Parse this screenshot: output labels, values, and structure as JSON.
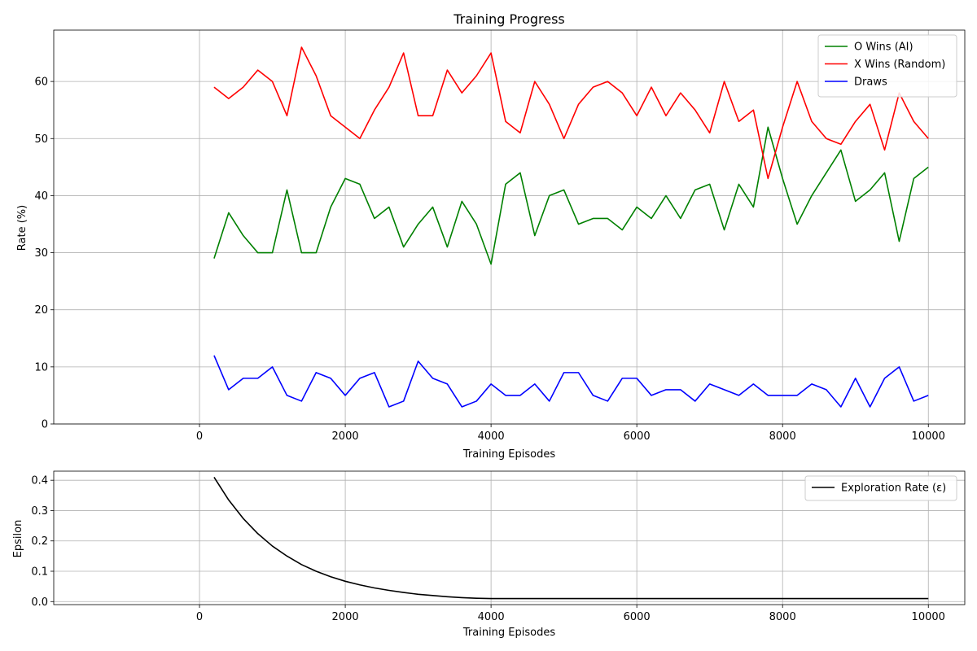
{
  "chart_data": [
    {
      "type": "line",
      "title": "Training Progress",
      "xlabel": "Training Episodes",
      "ylabel": "Rate (%)",
      "xlim": [
        -2000,
        10500
      ],
      "ylim": [
        0,
        69
      ],
      "xticks": [
        0,
        2000,
        4000,
        6000,
        8000,
        10000
      ],
      "xtick_labels": [
        "0",
        "2000",
        "4000",
        "6000",
        "8000",
        "10000"
      ],
      "yticks": [
        0,
        10,
        20,
        30,
        40,
        50,
        60
      ],
      "ytick_labels": [
        "0",
        "10",
        "20",
        "30",
        "40",
        "50",
        "60"
      ],
      "grid": true,
      "legend_position": "upper right",
      "x": [
        200,
        400,
        600,
        800,
        1000,
        1200,
        1400,
        1600,
        1800,
        2000,
        2200,
        2400,
        2600,
        2800,
        3000,
        3200,
        3400,
        3600,
        3800,
        4000,
        4200,
        4400,
        4600,
        4800,
        5000,
        5200,
        5400,
        5600,
        5800,
        6000,
        6200,
        6400,
        6600,
        6800,
        7000,
        7200,
        7400,
        7600,
        7800,
        8000,
        8200,
        8400,
        8600,
        8800,
        9000,
        9200,
        9400,
        9600,
        9800,
        10000
      ],
      "series": [
        {
          "name": "O Wins (AI)",
          "color": "#008000",
          "values": [
            29,
            37,
            33,
            30,
            30,
            41,
            30,
            30,
            38,
            43,
            42,
            36,
            38,
            31,
            35,
            38,
            31,
            39,
            35,
            28,
            42,
            44,
            33,
            40,
            41,
            35,
            36,
            36,
            34,
            38,
            36,
            40,
            36,
            41,
            42,
            34,
            42,
            38,
            52,
            43,
            35,
            40,
            44,
            48,
            39,
            41,
            44,
            32,
            43,
            45
          ]
        },
        {
          "name": "X Wins (Random)",
          "color": "#ff0000",
          "values": [
            59,
            57,
            59,
            62,
            60,
            54,
            66,
            61,
            54,
            52,
            50,
            55,
            59,
            65,
            54,
            54,
            62,
            58,
            61,
            65,
            53,
            51,
            60,
            56,
            50,
            56,
            59,
            60,
            58,
            54,
            59,
            54,
            58,
            55,
            51,
            60,
            53,
            55,
            43,
            52,
            60,
            53,
            50,
            49,
            53,
            56,
            48,
            58,
            53,
            50
          ]
        },
        {
          "name": "Draws",
          "color": "#0000ff",
          "values": [
            12,
            6,
            8,
            8,
            10,
            5,
            4,
            9,
            8,
            5,
            8,
            9,
            3,
            4,
            11,
            8,
            7,
            3,
            4,
            7,
            5,
            5,
            7,
            4,
            9,
            9,
            5,
            4,
            8,
            8,
            5,
            6,
            6,
            4,
            7,
            6,
            5,
            7,
            5,
            5,
            5,
            7,
            6,
            3,
            8,
            3,
            8,
            10,
            4,
            5
          ]
        }
      ]
    },
    {
      "type": "line",
      "xlabel": "Training Episodes",
      "ylabel": "Epsilon",
      "xlim": [
        -2000,
        10500
      ],
      "ylim": [
        -0.01,
        0.43
      ],
      "xticks": [
        0,
        2000,
        4000,
        6000,
        8000,
        10000
      ],
      "xtick_labels": [
        "0",
        "2000",
        "4000",
        "6000",
        "8000",
        "10000"
      ],
      "yticks": [
        0,
        0.1,
        0.2,
        0.3,
        0.4
      ],
      "ytick_labels": [
        "0.0",
        "0.1",
        "0.2",
        "0.3",
        "0.4"
      ],
      "grid": true,
      "legend_position": "upper right",
      "x": [
        200,
        400,
        600,
        800,
        1000,
        1200,
        1400,
        1600,
        1800,
        2000,
        2200,
        2400,
        2600,
        2800,
        3000,
        3200,
        3400,
        3600,
        3800,
        4000,
        4200,
        4400,
        4600,
        4800,
        5000,
        5200,
        5400,
        5600,
        5800,
        6000,
        6200,
        6400,
        6600,
        6800,
        7000,
        7200,
        7400,
        7600,
        7800,
        8000,
        8200,
        8400,
        8600,
        8800,
        9000,
        9200,
        9400,
        9600,
        9800,
        10000
      ],
      "series": [
        {
          "name": "Exploration Rate (ε)",
          "color": "#000000",
          "values": [
            0.41,
            0.335,
            0.274,
            0.224,
            0.183,
            0.15,
            0.122,
            0.1,
            0.082,
            0.067,
            0.055,
            0.045,
            0.037,
            0.03,
            0.024,
            0.02,
            0.016,
            0.013,
            0.011,
            0.01,
            0.01,
            0.01,
            0.01,
            0.01,
            0.01,
            0.01,
            0.01,
            0.01,
            0.01,
            0.01,
            0.01,
            0.01,
            0.01,
            0.01,
            0.01,
            0.01,
            0.01,
            0.01,
            0.01,
            0.01,
            0.01,
            0.01,
            0.01,
            0.01,
            0.01,
            0.01,
            0.01,
            0.01,
            0.01,
            0.01
          ]
        }
      ]
    }
  ]
}
